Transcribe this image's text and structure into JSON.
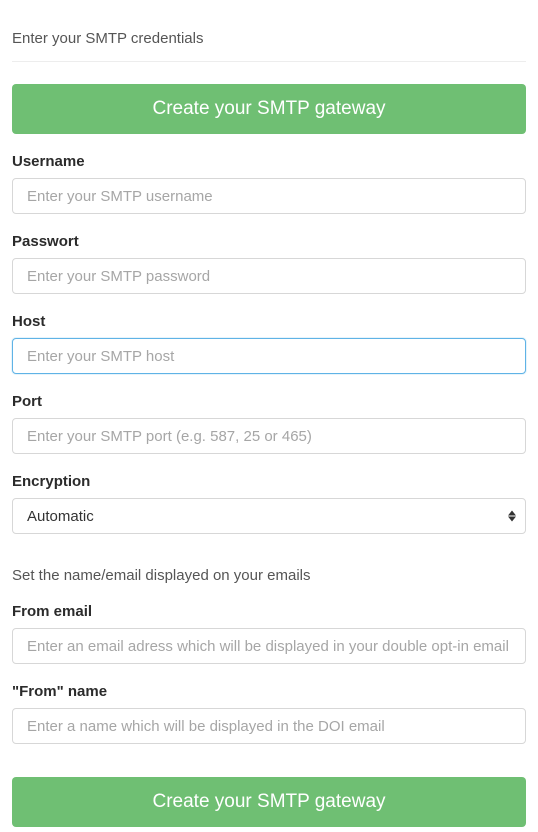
{
  "colors": {
    "primary_button_bg": "#6fbf73",
    "primary_button_text": "#ffffff",
    "input_border": "#d7d7d7",
    "input_border_focus": "#5fb3e6",
    "placeholder": "#a6a6a6",
    "text": "#333333",
    "label": "#2b2b2b",
    "muted": "#555555",
    "divider": "#ededed",
    "background": "#ffffff"
  },
  "typography": {
    "heading_fontsize": 15,
    "label_fontsize": 15,
    "label_fontweight": 600,
    "input_fontsize": 15,
    "button_fontsize": 19,
    "button_fontweight": 500
  },
  "section1": {
    "title": "Enter your SMTP credentials"
  },
  "buttons": {
    "create_top": "Create your SMTP gateway",
    "create_bottom": "Create your SMTP gateway"
  },
  "fields": {
    "username": {
      "label": "Username",
      "placeholder": "Enter your SMTP username",
      "value": ""
    },
    "password": {
      "label": "Passwort",
      "placeholder": "Enter your SMTP password",
      "value": ""
    },
    "host": {
      "label": "Host",
      "placeholder": "Enter your SMTP host",
      "value": "",
      "focused": true
    },
    "port": {
      "label": "Port",
      "placeholder": "Enter your SMTP port (e.g. 587, 25 or 465)",
      "value": ""
    },
    "encryption": {
      "label": "Encryption",
      "selected": "Automatic"
    },
    "from_email": {
      "label": "From email",
      "placeholder": "Enter an email adress which will be displayed in your double opt-in email",
      "value": ""
    },
    "from_name": {
      "label": "\"From\" name",
      "placeholder": "Enter a name which will be displayed in the DOI email",
      "value": ""
    }
  },
  "section2": {
    "title": "Set the name/email displayed on your emails"
  }
}
